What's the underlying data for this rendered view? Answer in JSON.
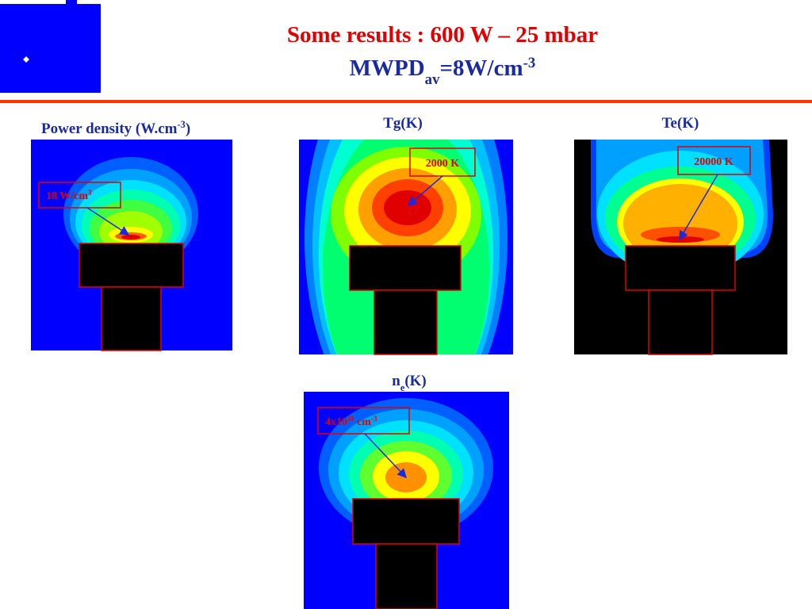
{
  "header": {
    "title": "Some results : 600 W – 25 mbar",
    "subtitle": {
      "text": "MWPD",
      "sub": "av",
      "rest": "=8W/cm",
      "sup": "-3"
    }
  },
  "panels": [
    {
      "title": {
        "text": "Power density (W.cm",
        "sup": "-3",
        "rest": ")"
      },
      "annotation": {
        "text": "18 W/cm",
        "sup": "3"
      }
    },
    {
      "title": "Tg(K)",
      "annotation": "2000 K"
    },
    {
      "title": "Te(K)",
      "annotation": "20000 K"
    },
    {
      "title": {
        "text": "n",
        "sub": "e",
        "rest": "(K)"
      },
      "annotation": {
        "text": "4x10",
        "sup": "11",
        "rest": " cm",
        "sup2": "-3"
      }
    }
  ]
}
